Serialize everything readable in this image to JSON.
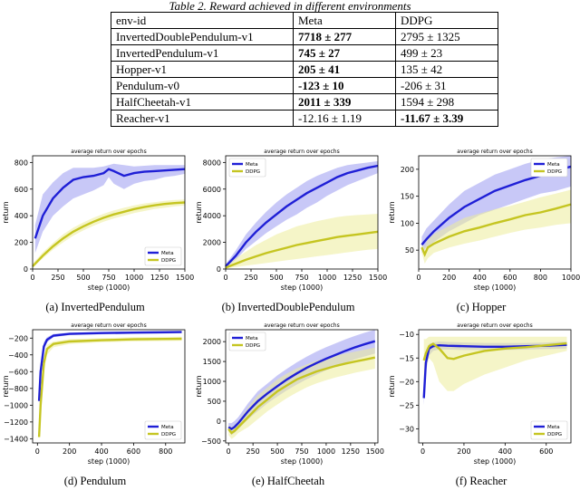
{
  "table": {
    "caption_label": "Table 2.",
    "caption_text": "Reward achieved in different environments",
    "headers": [
      "env-id",
      "Meta",
      "DDPG"
    ],
    "rows": [
      {
        "env": "InvertedDoublePendulum-v1",
        "meta": "7718 ± 277",
        "ddpg": "2795 ± 1325",
        "best": "meta"
      },
      {
        "env": "InvertedPendulum-v1",
        "meta": "745 ± 27",
        "ddpg": "499 ± 23",
        "best": "meta"
      },
      {
        "env": "Hopper-v1",
        "meta": "205 ± 41",
        "ddpg": "135 ± 42",
        "best": "meta"
      },
      {
        "env": "Pendulum-v0",
        "meta": "-123 ± 10",
        "ddpg": "-206 ± 31",
        "best": "meta"
      },
      {
        "env": "HalfCheetah-v1",
        "meta": "2011 ± 339",
        "ddpg": "1594 ± 298",
        "best": "meta"
      },
      {
        "env": "Reacher-v1",
        "meta": "-12.16 ± 1.19",
        "ddpg": "-11.67 ± 3.39",
        "best": "ddpg"
      }
    ]
  },
  "colors": {
    "meta": "#1f1fd6",
    "ddpg": "#c5c521",
    "meta_band": "#9b9bf0",
    "ddpg_band": "#ecec9a"
  },
  "chart_data": [
    {
      "type": "line",
      "title": "average return over epochs",
      "caption": "(a)  InvertedPendulum",
      "xlabel": "step (1000)",
      "ylabel": "return",
      "xlim": [
        0,
        1500
      ],
      "ylim": [
        0,
        850
      ],
      "xticks": [
        0,
        250,
        500,
        750,
        1000,
        1250,
        1500
      ],
      "yticks": [
        0,
        200,
        400,
        600,
        800
      ],
      "legend": "bottom-right",
      "series": [
        {
          "name": "Meta",
          "x": [
            25,
            100,
            200,
            300,
            400,
            500,
            600,
            700,
            750,
            800,
            900,
            1000,
            1100,
            1200,
            1300,
            1400,
            1500
          ],
          "y": [
            230,
            400,
            530,
            610,
            670,
            690,
            700,
            720,
            750,
            735,
            700,
            720,
            730,
            735,
            740,
            745,
            750
          ],
          "lo": [
            120,
            280,
            400,
            470,
            530,
            560,
            590,
            630,
            690,
            640,
            600,
            640,
            660,
            670,
            690,
            700,
            715
          ],
          "hi": [
            330,
            560,
            650,
            720,
            760,
            760,
            760,
            770,
            780,
            790,
            780,
            770,
            775,
            780,
            780,
            780,
            780
          ]
        },
        {
          "name": "DDPG",
          "x": [
            0,
            100,
            200,
            300,
            400,
            500,
            600,
            700,
            800,
            900,
            1000,
            1100,
            1200,
            1300,
            1400,
            1500
          ],
          "y": [
            20,
            100,
            170,
            230,
            280,
            320,
            355,
            385,
            410,
            430,
            450,
            465,
            478,
            488,
            495,
            500
          ],
          "lo": [
            10,
            80,
            145,
            200,
            250,
            290,
            325,
            355,
            380,
            400,
            420,
            435,
            450,
            460,
            470,
            478
          ],
          "hi": [
            40,
            125,
            195,
            260,
            310,
            350,
            385,
            415,
            440,
            460,
            478,
            492,
            502,
            512,
            518,
            522
          ]
        }
      ]
    },
    {
      "type": "line",
      "title": "average return over epochs",
      "caption": "(b)  InvertedDoublePendulum",
      "xlabel": "step (1000)",
      "ylabel": "return",
      "xlim": [
        0,
        1500
      ],
      "ylim": [
        0,
        8500
      ],
      "xticks": [
        0,
        250,
        500,
        750,
        1000,
        1250,
        1500
      ],
      "yticks": [
        0,
        2000,
        4000,
        6000,
        8000
      ],
      "legend": "top-left",
      "series": [
        {
          "name": "Meta",
          "x": [
            0,
            100,
            200,
            300,
            400,
            500,
            600,
            700,
            800,
            900,
            1000,
            1100,
            1200,
            1300,
            1400,
            1500
          ],
          "y": [
            200,
            1000,
            2000,
            2800,
            3500,
            4100,
            4700,
            5200,
            5700,
            6100,
            6500,
            6900,
            7200,
            7400,
            7600,
            7750
          ],
          "lo": [
            100,
            700,
            1500,
            2100,
            2700,
            3200,
            3700,
            4100,
            4600,
            5000,
            5500,
            5900,
            6300,
            6600,
            6900,
            7200
          ],
          "hi": [
            350,
            1400,
            2600,
            3500,
            4300,
            5000,
            5600,
            6100,
            6600,
            7000,
            7300,
            7600,
            7800,
            7900,
            8000,
            8100
          ]
        },
        {
          "name": "DDPG",
          "x": [
            0,
            100,
            200,
            300,
            400,
            500,
            600,
            700,
            800,
            900,
            1000,
            1100,
            1200,
            1300,
            1400,
            1500
          ],
          "y": [
            100,
            400,
            700,
            950,
            1200,
            1400,
            1600,
            1800,
            1950,
            2100,
            2250,
            2400,
            2500,
            2600,
            2700,
            2800
          ],
          "lo": [
            50,
            150,
            250,
            350,
            450,
            550,
            650,
            750,
            850,
            950,
            1050,
            1150,
            1250,
            1350,
            1450,
            1500
          ],
          "hi": [
            200,
            800,
            1300,
            1800,
            2200,
            2600,
            2900,
            3200,
            3400,
            3600,
            3750,
            3900,
            4000,
            4050,
            4100,
            4150
          ]
        }
      ]
    },
    {
      "type": "line",
      "title": "average return over epochs",
      "caption": "(c)  Hopper",
      "xlabel": "step (1000)",
      "ylabel": "return",
      "xlim": [
        0,
        1000
      ],
      "ylim": [
        15,
        225
      ],
      "xticks": [
        0,
        200,
        400,
        600,
        800,
        1000
      ],
      "yticks": [
        50,
        100,
        150,
        200
      ],
      "legend": "top-right",
      "series": [
        {
          "name": "Meta",
          "x": [
            20,
            50,
            100,
            200,
            300,
            400,
            500,
            600,
            700,
            800,
            900,
            1000
          ],
          "y": [
            60,
            70,
            85,
            110,
            130,
            145,
            160,
            170,
            180,
            188,
            198,
            205
          ],
          "lo": [
            45,
            55,
            65,
            85,
            100,
            115,
            125,
            135,
            145,
            155,
            160,
            168
          ],
          "hi": [
            75,
            90,
            105,
            135,
            160,
            175,
            190,
            200,
            210,
            218,
            222,
            225
          ]
        },
        {
          "name": "DDPG",
          "x": [
            20,
            40,
            60,
            100,
            200,
            300,
            400,
            500,
            600,
            700,
            800,
            900,
            1000
          ],
          "y": [
            55,
            42,
            55,
            62,
            75,
            85,
            92,
            100,
            107,
            115,
            120,
            127,
            135
          ],
          "lo": [
            45,
            25,
            35,
            45,
            55,
            62,
            68,
            75,
            82,
            88,
            92,
            97,
            100
          ],
          "hi": [
            65,
            55,
            70,
            80,
            95,
            110,
            118,
            126,
            132,
            140,
            148,
            155,
            162
          ]
        }
      ]
    },
    {
      "type": "line",
      "title": "average return over epochs",
      "caption": "(d)  Pendulum",
      "xlabel": "step (1000)",
      "ylabel": "return",
      "xlim": [
        -30,
        920
      ],
      "ylim": [
        -1450,
        -100
      ],
      "xticks": [
        0,
        200,
        400,
        600,
        800
      ],
      "yticks": [
        -1400,
        -1200,
        -1000,
        -800,
        -600,
        -400,
        -200
      ],
      "legend": "bottom-right",
      "series": [
        {
          "name": "Meta",
          "x": [
            10,
            20,
            40,
            60,
            100,
            200,
            400,
            600,
            800,
            900
          ],
          "y": [
            -950,
            -600,
            -300,
            -220,
            -170,
            -150,
            -140,
            -135,
            -130,
            -128
          ],
          "lo": [
            -1000,
            -700,
            -350,
            -250,
            -190,
            -165,
            -155,
            -150,
            -145,
            -142
          ],
          "hi": [
            -900,
            -500,
            -250,
            -190,
            -150,
            -135,
            -125,
            -120,
            -115,
            -113
          ]
        },
        {
          "name": "DDPG",
          "x": [
            10,
            20,
            40,
            60,
            100,
            200,
            400,
            600,
            800,
            900
          ],
          "y": [
            -1380,
            -1000,
            -500,
            -330,
            -270,
            -240,
            -225,
            -215,
            -210,
            -208
          ],
          "lo": [
            -1420,
            -1100,
            -600,
            -400,
            -310,
            -270,
            -250,
            -240,
            -235,
            -232
          ],
          "hi": [
            -1300,
            -900,
            -420,
            -280,
            -240,
            -210,
            -200,
            -190,
            -185,
            -183
          ]
        }
      ]
    },
    {
      "type": "line",
      "title": "average return over epochs",
      "caption": "(e)  HalfCheetah",
      "xlabel": "step (1000)",
      "ylabel": "return",
      "xlim": [
        -30,
        1530
      ],
      "ylim": [
        -550,
        2300
      ],
      "xticks": [
        0,
        250,
        500,
        750,
        1000,
        1250,
        1500
      ],
      "yticks": [
        -500,
        0,
        500,
        1000,
        1500,
        2000
      ],
      "legend": "top-left",
      "series": [
        {
          "name": "Meta",
          "x": [
            0,
            30,
            60,
            100,
            200,
            300,
            400,
            500,
            600,
            700,
            800,
            900,
            1000,
            1100,
            1200,
            1300,
            1400,
            1500
          ],
          "y": [
            -150,
            -200,
            -150,
            -50,
            250,
            500,
            700,
            880,
            1050,
            1200,
            1340,
            1460,
            1570,
            1670,
            1770,
            1860,
            1940,
            2010
          ],
          "lo": [
            -250,
            -350,
            -300,
            -200,
            50,
            250,
            450,
            620,
            780,
            920,
            1050,
            1170,
            1280,
            1380,
            1470,
            1560,
            1630,
            1700
          ],
          "hi": [
            -50,
            -50,
            0,
            100,
            450,
            750,
            950,
            1150,
            1320,
            1480,
            1620,
            1750,
            1860,
            1960,
            2060,
            2150,
            2230,
            2300
          ]
        },
        {
          "name": "DDPG",
          "x": [
            0,
            30,
            60,
            100,
            200,
            300,
            400,
            500,
            600,
            700,
            800,
            900,
            1000,
            1100,
            1200,
            1300,
            1400,
            1500
          ],
          "y": [
            -200,
            -300,
            -250,
            -150,
            100,
            350,
            550,
            750,
            900,
            1050,
            1150,
            1250,
            1320,
            1390,
            1450,
            1500,
            1550,
            1600
          ],
          "lo": [
            -350,
            -450,
            -400,
            -300,
            -150,
            50,
            250,
            420,
            580,
            720,
            850,
            950,
            1030,
            1100,
            1160,
            1220,
            1270,
            1320
          ],
          "hi": [
            -100,
            -150,
            -100,
            0,
            350,
            650,
            850,
            1050,
            1200,
            1330,
            1430,
            1520,
            1590,
            1650,
            1700,
            1750,
            1800,
            1850
          ]
        }
      ]
    },
    {
      "type": "line",
      "title": "average return over epochs",
      "caption": "(f)  Reacher",
      "xlabel": "step (1000)",
      "ylabel": "return",
      "xlim": [
        -20,
        720
      ],
      "ylim": [
        -33,
        -9
      ],
      "xticks": [
        0,
        200,
        400,
        600
      ],
      "yticks": [
        -30,
        -25,
        -20,
        -15,
        -10
      ],
      "legend": "bottom-right",
      "series": [
        {
          "name": "Meta",
          "x": [
            5,
            15,
            30,
            50,
            80,
            120,
            200,
            300,
            400,
            500,
            600,
            700
          ],
          "y": [
            -23.5,
            -16,
            -13,
            -12.5,
            -12.3,
            -12.4,
            -12.5,
            -12.6,
            -12.6,
            -12.5,
            -12.4,
            -12.2
          ],
          "lo": [
            -25,
            -18,
            -14.5,
            -13.5,
            -13.2,
            -13.2,
            -13.3,
            -13.3,
            -13.3,
            -13.2,
            -13.1,
            -13
          ],
          "hi": [
            -22,
            -14,
            -12,
            -11.7,
            -11.5,
            -11.6,
            -11.7,
            -11.8,
            -11.8,
            -11.8,
            -11.7,
            -11.5
          ]
        },
        {
          "name": "DDPG",
          "x": [
            5,
            15,
            30,
            50,
            80,
            120,
            150,
            200,
            250,
            300,
            400,
            500,
            600,
            700
          ],
          "y": [
            -15.5,
            -14,
            -12.5,
            -12,
            -13,
            -15,
            -15.2,
            -14.5,
            -14,
            -13.5,
            -13,
            -12.7,
            -12.3,
            -11.9
          ],
          "lo": [
            -20,
            -17,
            -15,
            -16,
            -20,
            -22,
            -22,
            -20.5,
            -19.5,
            -18.5,
            -17,
            -15.5,
            -14.5,
            -13.5
          ],
          "hi": [
            -11,
            -11,
            -10.5,
            -10.5,
            -10.5,
            -10.5,
            -10.5,
            -10.5,
            -10.5,
            -10.5,
            -10.5,
            -10.5,
            -10.5,
            -10.5
          ]
        }
      ]
    }
  ]
}
